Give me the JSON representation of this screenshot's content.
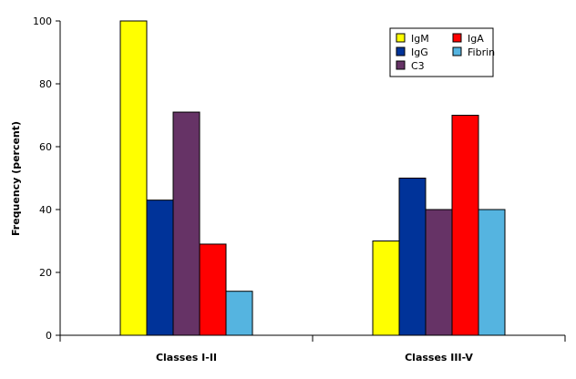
{
  "chart_data": {
    "type": "bar",
    "title": "",
    "xlabel": "",
    "ylabel": "Frequency (percent)",
    "ylim": [
      0,
      100
    ],
    "yticks": [
      "0",
      "20",
      "40",
      "60",
      "80",
      "100"
    ],
    "grid": false,
    "legend_position": "top-right",
    "categories": [
      "Classes I-II",
      "Classes III-V"
    ],
    "series": [
      {
        "name": "IgM",
        "color": "#ffff00",
        "values": [
          100,
          30
        ]
      },
      {
        "name": "IgG",
        "color": "#003399",
        "values": [
          43,
          50
        ]
      },
      {
        "name": "C3",
        "color": "#663366",
        "values": [
          71,
          40
        ]
      },
      {
        "name": "IgA",
        "color": "#ff0000",
        "values": [
          29,
          70
        ]
      },
      {
        "name": "Fibrin",
        "color": "#55b4e0",
        "values": [
          14,
          40
        ]
      }
    ]
  }
}
